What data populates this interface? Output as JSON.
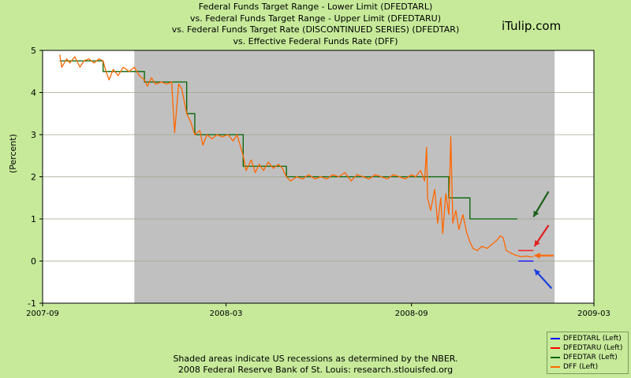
{
  "title_lines": [
    "Federal Funds Target Range - Lower Limit (DFEDTARL)",
    "vs.  Federal Funds Target Range - Upper Limit (DFEDTARU)",
    "vs.  Federal Funds Target Rate  (DISCONTINUED SERIES) (DFEDTAR)",
    "vs.  Effective Federal Funds Rate (DFF)"
  ],
  "brand": "iTulip.com",
  "footer": {
    "line1": "Shaded areas indicate US recessions as determined by the NBER.",
    "line2": "2008 Federal Reserve Bank of St. Louis: research.stlouisfed.org"
  },
  "colors": {
    "background": "#c6ea9a",
    "recession": "#c0c0c0",
    "dfedtarl": "#0000ff",
    "dfedtaru": "#ff0000",
    "dfedtar": "#006400",
    "dff": "#ff6600"
  },
  "chart_data": {
    "type": "line",
    "ylabel": "(Percent)",
    "ylim": [
      -1,
      5
    ],
    "yticks": [
      -1,
      0,
      1,
      2,
      3,
      4,
      5
    ],
    "xticks": [
      "2007-09",
      "2008-03",
      "2008-09",
      "2009-03"
    ],
    "xlim": [
      "2007-09-01",
      "2009-03-01"
    ],
    "grid": true,
    "legend_position": "bottom-right",
    "recession_shading": [
      [
        "2007-12-01",
        "2009-03-01"
      ]
    ],
    "series": [
      {
        "name": "DFEDTARL (Left)",
        "color": "#0000ff",
        "points": [
          [
            "2008-12-16",
            0
          ],
          [
            "2008-12-31",
            0
          ]
        ]
      },
      {
        "name": "DFEDTARU (Left)",
        "color": "#ff0000",
        "points": [
          [
            "2008-12-16",
            0.25
          ],
          [
            "2008-12-31",
            0.25
          ]
        ]
      },
      {
        "name": "DFEDTAR (Left)",
        "color": "#006400",
        "points": [
          [
            "2007-09-18",
            4.75
          ],
          [
            "2007-10-31",
            4.75
          ],
          [
            "2007-10-31",
            4.5
          ],
          [
            "2007-12-11",
            4.5
          ],
          [
            "2007-12-11",
            4.25
          ],
          [
            "2008-01-22",
            4.25
          ],
          [
            "2008-01-22",
            3.5
          ],
          [
            "2008-01-30",
            3.5
          ],
          [
            "2008-01-30",
            3.0
          ],
          [
            "2008-03-18",
            3.0
          ],
          [
            "2008-03-18",
            2.25
          ],
          [
            "2008-04-30",
            2.25
          ],
          [
            "2008-04-30",
            2.0
          ],
          [
            "2008-10-08",
            2.0
          ],
          [
            "2008-10-08",
            1.5
          ],
          [
            "2008-10-29",
            1.5
          ],
          [
            "2008-10-29",
            1.0
          ],
          [
            "2008-12-15",
            1.0
          ]
        ]
      },
      {
        "name": "DFF (Left)",
        "color": "#ff6600",
        "points": [
          [
            "2007-09-18",
            4.9
          ],
          [
            "2007-09-20",
            4.6
          ],
          [
            "2007-09-25",
            4.8
          ],
          [
            "2007-09-28",
            4.7
          ],
          [
            "2007-10-03",
            4.85
          ],
          [
            "2007-10-08",
            4.6
          ],
          [
            "2007-10-12",
            4.75
          ],
          [
            "2007-10-17",
            4.8
          ],
          [
            "2007-10-22",
            4.7
          ],
          [
            "2007-10-27",
            4.8
          ],
          [
            "2007-10-31",
            4.75
          ],
          [
            "2007-11-03",
            4.5
          ],
          [
            "2007-11-06",
            4.3
          ],
          [
            "2007-11-10",
            4.55
          ],
          [
            "2007-11-15",
            4.4
          ],
          [
            "2007-11-20",
            4.6
          ],
          [
            "2007-11-26",
            4.5
          ],
          [
            "2007-12-01",
            4.6
          ],
          [
            "2007-12-06",
            4.4
          ],
          [
            "2007-12-11",
            4.3
          ],
          [
            "2007-12-14",
            4.15
          ],
          [
            "2007-12-18",
            4.35
          ],
          [
            "2007-12-22",
            4.2
          ],
          [
            "2007-12-28",
            4.25
          ],
          [
            "2008-01-02",
            4.2
          ],
          [
            "2008-01-07",
            4.25
          ],
          [
            "2008-01-10",
            3.05
          ],
          [
            "2008-01-14",
            4.2
          ],
          [
            "2008-01-17",
            4.1
          ],
          [
            "2008-01-22",
            3.5
          ],
          [
            "2008-01-26",
            3.3
          ],
          [
            "2008-01-30",
            3.0
          ],
          [
            "2008-02-04",
            3.1
          ],
          [
            "2008-02-07",
            2.75
          ],
          [
            "2008-02-11",
            3.0
          ],
          [
            "2008-02-16",
            2.9
          ],
          [
            "2008-02-21",
            3.0
          ],
          [
            "2008-02-26",
            2.95
          ],
          [
            "2008-03-03",
            3.0
          ],
          [
            "2008-03-08",
            2.85
          ],
          [
            "2008-03-12",
            3.0
          ],
          [
            "2008-03-18",
            2.5
          ],
          [
            "2008-03-21",
            2.15
          ],
          [
            "2008-03-26",
            2.4
          ],
          [
            "2008-03-30",
            2.1
          ],
          [
            "2008-04-03",
            2.3
          ],
          [
            "2008-04-07",
            2.15
          ],
          [
            "2008-04-12",
            2.35
          ],
          [
            "2008-04-17",
            2.2
          ],
          [
            "2008-04-22",
            2.3
          ],
          [
            "2008-04-26",
            2.2
          ],
          [
            "2008-04-30",
            2.0
          ],
          [
            "2008-05-04",
            1.9
          ],
          [
            "2008-05-10",
            2.0
          ],
          [
            "2008-05-16",
            1.95
          ],
          [
            "2008-05-22",
            2.05
          ],
          [
            "2008-05-28",
            1.95
          ],
          [
            "2008-06-03",
            2.0
          ],
          [
            "2008-06-09",
            1.95
          ],
          [
            "2008-06-15",
            2.05
          ],
          [
            "2008-06-21",
            2.0
          ],
          [
            "2008-06-27",
            2.1
          ],
          [
            "2008-07-03",
            1.9
          ],
          [
            "2008-07-09",
            2.05
          ],
          [
            "2008-07-15",
            2.0
          ],
          [
            "2008-07-21",
            1.95
          ],
          [
            "2008-07-27",
            2.05
          ],
          [
            "2008-08-02",
            2.0
          ],
          [
            "2008-08-08",
            1.95
          ],
          [
            "2008-08-14",
            2.05
          ],
          [
            "2008-08-20",
            2.0
          ],
          [
            "2008-08-26",
            1.95
          ],
          [
            "2008-09-01",
            2.05
          ],
          [
            "2008-09-05",
            2.0
          ],
          [
            "2008-09-10",
            2.15
          ],
          [
            "2008-09-14",
            1.9
          ],
          [
            "2008-09-16",
            2.7
          ],
          [
            "2008-09-17",
            1.5
          ],
          [
            "2008-09-20",
            1.2
          ],
          [
            "2008-09-24",
            1.7
          ],
          [
            "2008-09-27",
            0.9
          ],
          [
            "2008-09-30",
            1.5
          ],
          [
            "2008-10-02",
            0.65
          ],
          [
            "2008-10-05",
            1.6
          ],
          [
            "2008-10-08",
            1.1
          ],
          [
            "2008-10-10",
            2.95
          ],
          [
            "2008-10-12",
            0.9
          ],
          [
            "2008-10-15",
            1.2
          ],
          [
            "2008-10-18",
            0.75
          ],
          [
            "2008-10-22",
            1.1
          ],
          [
            "2008-10-26",
            0.65
          ],
          [
            "2008-10-29",
            0.45
          ],
          [
            "2008-11-01",
            0.3
          ],
          [
            "2008-11-05",
            0.25
          ],
          [
            "2008-11-10",
            0.35
          ],
          [
            "2008-11-15",
            0.3
          ],
          [
            "2008-11-20",
            0.4
          ],
          [
            "2008-11-25",
            0.5
          ],
          [
            "2008-11-28",
            0.6
          ],
          [
            "2008-12-01",
            0.55
          ],
          [
            "2008-12-04",
            0.25
          ],
          [
            "2008-12-08",
            0.2
          ],
          [
            "2008-12-12",
            0.15
          ],
          [
            "2008-12-16",
            0.12
          ],
          [
            "2008-12-20",
            0.1
          ],
          [
            "2008-12-24",
            0.12
          ],
          [
            "2008-12-28",
            0.1
          ],
          [
            "2008-12-31",
            0.1
          ]
        ]
      }
    ],
    "annotations": {
      "arrows": [
        {
          "color": "#1a5e1a",
          "from": [
            "2009-01-15",
            1.65
          ],
          "to": [
            "2008-12-31",
            1.05
          ]
        },
        {
          "color": "#e02020",
          "from": [
            "2009-01-15",
            0.85
          ],
          "to": [
            "2009-01-01",
            0.35
          ]
        },
        {
          "color": "#ff6600",
          "from": [
            "2009-01-20",
            0.13
          ],
          "to": [
            "2009-01-01",
            0.13
          ]
        },
        {
          "color": "#1a3ee0",
          "from": [
            "2009-01-18",
            -0.65
          ],
          "to": [
            "2009-01-01",
            -0.2
          ]
        }
      ]
    }
  }
}
